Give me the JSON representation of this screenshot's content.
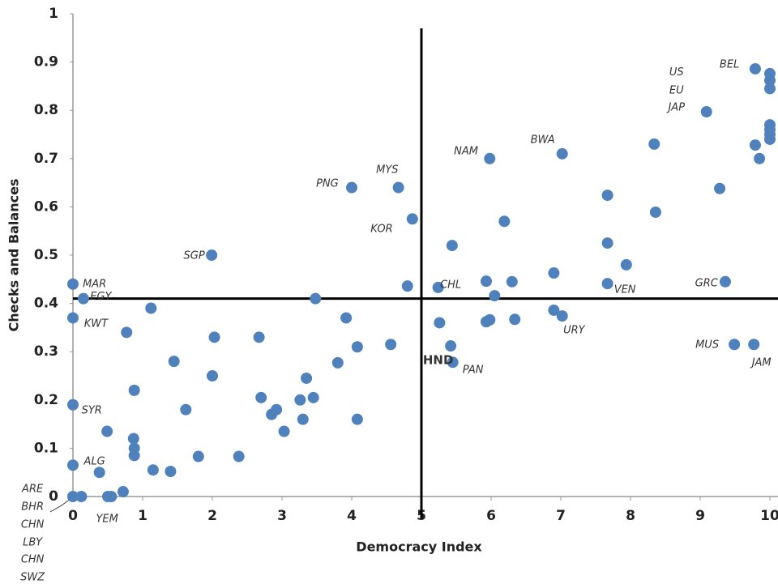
{
  "chart_data": {
    "type": "scatter",
    "x_label": "Democracy Index",
    "y_label": "Checks and Balances",
    "xlim": [
      0,
      10
    ],
    "ylim": [
      0,
      1
    ],
    "xticks": [
      0,
      1,
      2,
      3,
      4,
      5,
      6,
      7,
      8,
      9,
      10
    ],
    "yticks": [
      0,
      0.1,
      0.2,
      0.3,
      0.4,
      0.5,
      0.6,
      0.7,
      0.8,
      0.9,
      1
    ],
    "color": "#4f81bd",
    "ref_x": 5,
    "ref_y": 0.41,
    "x": [
      0,
      0.15,
      0,
      0,
      0,
      0,
      0.12,
      0.5,
      0.55,
      0.72,
      0.38,
      0.49,
      0.77,
      1.12,
      0.88,
      0.87,
      0.88,
      0.88,
      1.15,
      1.4,
      1.45,
      1.62,
      1.8,
      1.99,
      2.0,
      2.03,
      2.38,
      2.67,
      2.7,
      2.85,
      2.92,
      3.03,
      3.26,
      3.3,
      3.35,
      3.45,
      3.48,
      3.8,
      3.92,
      4.0,
      4.08,
      4.08,
      4.56,
      4.67,
      4.8,
      4.87,
      5.24,
      5.26,
      5.42,
      5.44,
      5.45,
      5.93,
      5.98,
      6.05,
      5.93,
      5.98,
      6.19,
      6.3,
      6.34,
      6.9,
      6.9,
      7.02,
      7.02,
      7.67,
      7.67,
      7.67,
      7.94,
      8.36,
      8.34,
      9.09,
      9.28,
      9.36,
      9.49,
      9.79,
      9.79,
      9.85,
      9.77,
      10,
      10,
      10,
      10,
      10,
      10,
      10
    ],
    "values": [
      0.44,
      0.41,
      0.37,
      0.19,
      0.065,
      0,
      0,
      0,
      0,
      0.01,
      0.05,
      0.135,
      0.34,
      0.39,
      0.22,
      0.12,
      0.1,
      0.085,
      0.055,
      0.052,
      0.28,
      0.18,
      0.083,
      0.5,
      0.25,
      0.33,
      0.083,
      0.33,
      0.205,
      0.17,
      0.18,
      0.135,
      0.2,
      0.16,
      0.245,
      0.205,
      0.41,
      0.277,
      0.37,
      0.64,
      0.31,
      0.16,
      0.315,
      0.64,
      0.436,
      0.575,
      0.433,
      0.36,
      0.312,
      0.52,
      0.278,
      0.446,
      0.7,
      0.416,
      0.362,
      0.366,
      0.57,
      0.445,
      0.367,
      0.463,
      0.386,
      0.71,
      0.374,
      0.624,
      0.525,
      0.441,
      0.48,
      0.589,
      0.73,
      0.797,
      0.638,
      0.445,
      0.315,
      0.728,
      0.886,
      0.7,
      0.315,
      0.876,
      0.862,
      0.845,
      0.77,
      0.76,
      0.75,
      0.74
    ],
    "annotations": [
      {
        "text": "MAR",
        "x": 0.31,
        "y": 0.44
      },
      {
        "text": "EGY",
        "x": 0.4,
        "y": 0.414
      },
      {
        "text": "KWT",
        "x": 0.33,
        "y": 0.357
      },
      {
        "text": "SYR",
        "x": 0.27,
        "y": 0.178
      },
      {
        "text": "ALG",
        "x": 0.31,
        "y": 0.072
      },
      {
        "text": "ARE",
        "x": -0.58,
        "y": 0.015
      },
      {
        "text": "BHR",
        "x": -0.58,
        "y": -0.022
      },
      {
        "text": "CHN",
        "x": -0.58,
        "y": -0.059
      },
      {
        "text": "LBY",
        "x": -0.58,
        "y": -0.096
      },
      {
        "text": "CHN",
        "x": -0.58,
        "y": -0.131
      },
      {
        "text": "SWZ",
        "x": -0.58,
        "y": -0.168
      },
      {
        "text": "YEM",
        "x": 0.49,
        "y": -0.047
      },
      {
        "text": "NAM",
        "x": 5.64,
        "y": 0.715
      },
      {
        "text": "BWA",
        "x": 6.74,
        "y": 0.738
      },
      {
        "text": "MYS",
        "x": 4.51,
        "y": 0.676
      },
      {
        "text": "PNG",
        "x": 3.65,
        "y": 0.648
      },
      {
        "text": "KOR",
        "x": 4.43,
        "y": 0.554
      },
      {
        "text": "SGP",
        "x": 1.74,
        "y": 0.498
      },
      {
        "text": "CHL",
        "x": 5.42,
        "y": 0.438
      },
      {
        "text": "HND",
        "x": 5.24,
        "y": 0.282,
        "emphasis": true
      },
      {
        "text": "PAN",
        "x": 5.74,
        "y": 0.262
      },
      {
        "text": "URY",
        "x": 7.19,
        "y": 0.344
      },
      {
        "text": "VEN",
        "x": 7.92,
        "y": 0.428
      },
      {
        "text": "GRC",
        "x": 9.09,
        "y": 0.441
      },
      {
        "text": "MUS",
        "x": 9.1,
        "y": 0.314
      },
      {
        "text": "JAM",
        "x": 9.88,
        "y": 0.277
      },
      {
        "text": "US",
        "x": 8.66,
        "y": 0.878
      },
      {
        "text": "EU",
        "x": 8.66,
        "y": 0.841
      },
      {
        "text": "JAP",
        "x": 8.66,
        "y": 0.805
      },
      {
        "text": "BEL",
        "x": 9.42,
        "y": 0.894
      }
    ]
  }
}
